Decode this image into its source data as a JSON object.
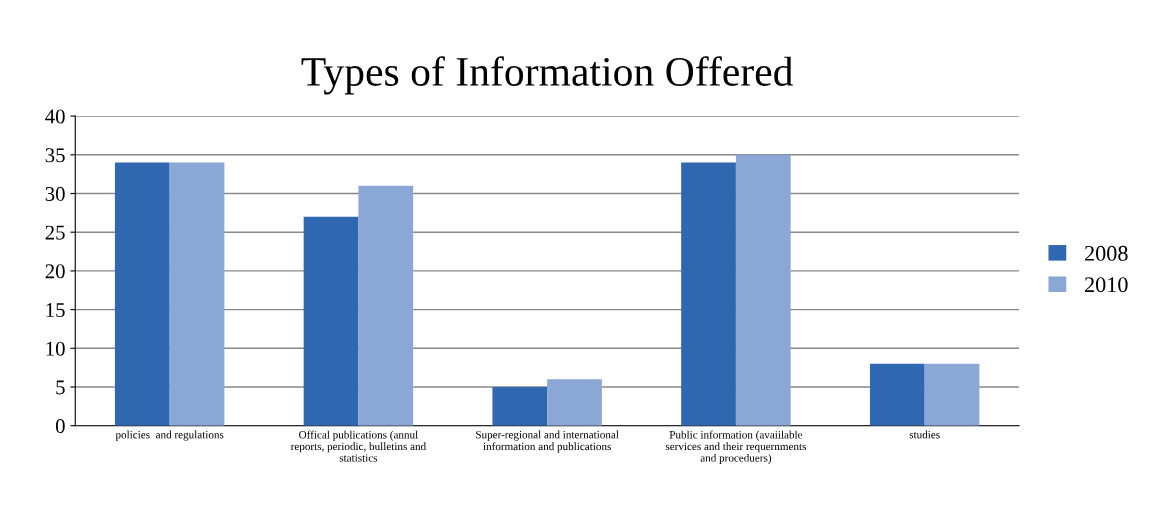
{
  "chart_data": {
    "type": "bar",
    "title": "Types of Information Offered",
    "categories": [
      "policies  and regulations",
      "Offical publications (annul\nreports, periodic, bulletins and\nstatistics",
      "Super-regional and international\ninformation and publications",
      "Public information (avaiilable\nservices and their requernments\nand proceduers)",
      "studies"
    ],
    "series": [
      {
        "name": "2008",
        "color": "#2f67b0",
        "values": [
          34,
          27,
          5,
          34,
          8
        ]
      },
      {
        "name": "2010",
        "color": "#8aa7d6",
        "values": [
          34,
          31,
          6,
          35,
          8
        ]
      }
    ],
    "ylim": [
      0,
      40
    ],
    "yticks": [
      0,
      5,
      10,
      15,
      20,
      25,
      30,
      35,
      40
    ],
    "grid": "y",
    "legend": "right"
  }
}
